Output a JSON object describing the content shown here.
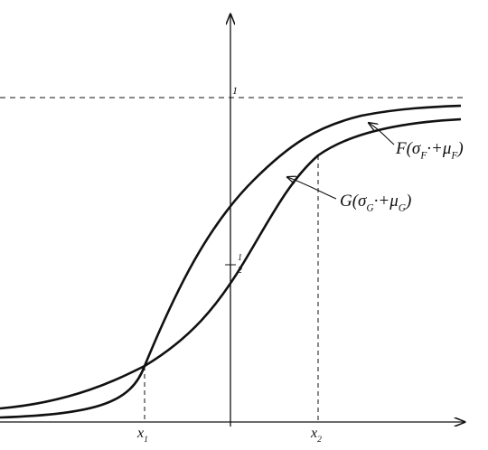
{
  "axis_labels": {
    "one": "1",
    "half": {
      "num": "1",
      "den": "2"
    },
    "x1": [
      "x",
      "1"
    ],
    "x2": [
      "x",
      "2"
    ]
  },
  "curve_labels": {
    "F": [
      "F(σ",
      "F",
      "·+μ",
      "F",
      ")"
    ],
    "G": [
      "G(σ",
      "G",
      "·+μ",
      "G",
      ")"
    ]
  }
}
